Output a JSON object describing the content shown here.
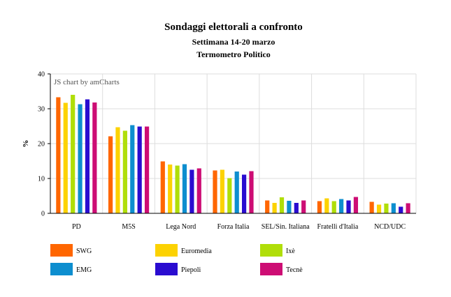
{
  "chart_data": {
    "type": "bar",
    "title": "Sondaggi elettorali a confronto",
    "subtitle": "Settimana 14-20 marzo",
    "subtitle2": "Termometro Politico",
    "xlabel": "",
    "ylabel": "%",
    "ylim": [
      0,
      40
    ],
    "yticks": [
      0,
      10,
      20,
      30,
      40
    ],
    "grid": true,
    "legend": "bottom",
    "credit": "JS chart by amCharts",
    "categories": [
      "PD",
      "M5S",
      "Lega Nord",
      "Forza Italia",
      "SEL/Sin. Italiana",
      "Fratelli d'Italia",
      "NCD/UDC"
    ],
    "series": [
      {
        "name": "SWG",
        "color": "#FF6600",
        "values": [
          33.3,
          22.1,
          14.9,
          12.3,
          3.7,
          3.5,
          3.3
        ]
      },
      {
        "name": "Euromedia",
        "color": "#FCD202",
        "values": [
          31.7,
          24.7,
          14.0,
          12.5,
          3.0,
          4.3,
          2.5
        ]
      },
      {
        "name": "Ixè",
        "color": "#B0DE09",
        "values": [
          34.0,
          23.7,
          13.7,
          10.1,
          4.6,
          3.5,
          2.8
        ]
      },
      {
        "name": "EMG",
        "color": "#0D8ECF",
        "values": [
          31.3,
          25.3,
          14.1,
          12.0,
          3.6,
          4.1,
          2.9
        ]
      },
      {
        "name": "Piepoli",
        "color": "#2A0CD0",
        "values": [
          32.7,
          24.9,
          12.5,
          11.1,
          3.0,
          3.7,
          1.9
        ]
      },
      {
        "name": "Tecnè",
        "color": "#CD0D74",
        "values": [
          31.8,
          24.9,
          12.9,
          12.1,
          3.7,
          4.7,
          2.9
        ]
      }
    ]
  }
}
